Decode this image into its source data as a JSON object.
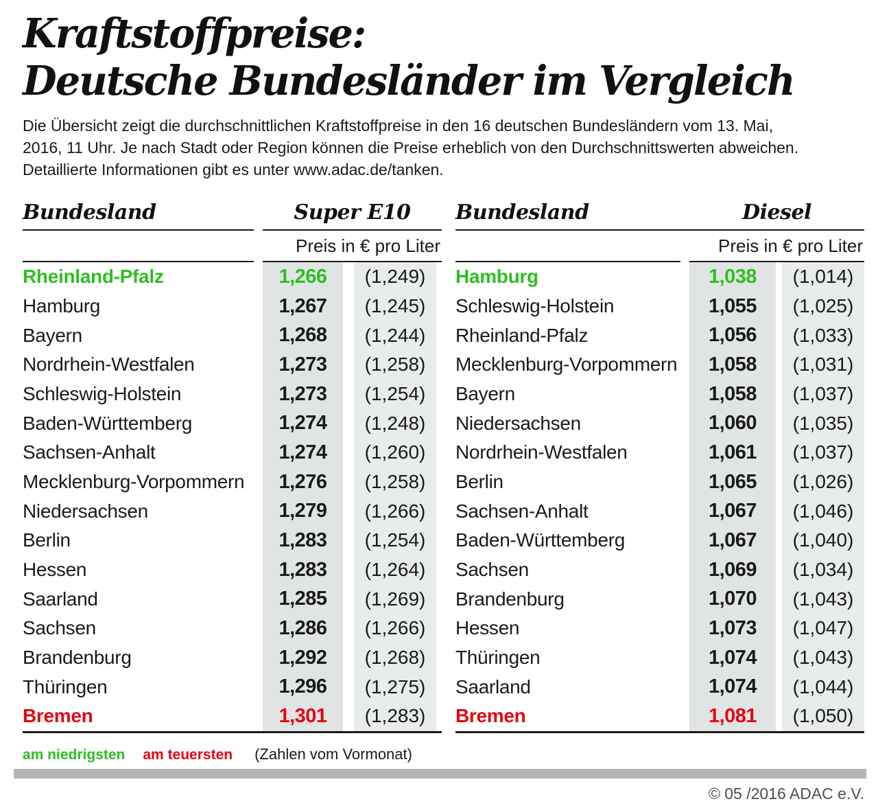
{
  "header": {
    "title_line1": "Kraftstoffpreise:",
    "title_line2": "Deutsche Bundesländer im Vergleich",
    "intro_lines": [
      "Die Übersicht zeigt die durchschnittlichen Kraftstoffpreise in den 16 deutschen Bundesländern vom 13. Mai,",
      "2016, 11 Uhr. Je nach Stadt oder Region können die Preise erheblich von den Durchschnittswerten abweichen.",
      "Detaillierte Informationen gibt es unter www.adac.de/tanken."
    ]
  },
  "chart_data": [
    {
      "type": "table",
      "title": "Super E10",
      "region_header": "Bundesland",
      "fuel_header": "Super E10",
      "unit_label": "Preis in € pro Liter",
      "value_note": "(Zahlen vom Vormonat)",
      "rows": [
        {
          "name": "Rheinland-Pfalz",
          "price": "1,266",
          "prev": "(1,249)",
          "highlight": "lowest"
        },
        {
          "name": "Hamburg",
          "price": "1,267",
          "prev": "(1,245)"
        },
        {
          "name": "Bayern",
          "price": "1,268",
          "prev": "(1,244)"
        },
        {
          "name": "Nordrhein-Westfalen",
          "price": "1,273",
          "prev": "(1,258)"
        },
        {
          "name": "Schleswig-Holstein",
          "price": "1,273",
          "prev": "(1,254)"
        },
        {
          "name": "Baden-Württemberg",
          "price": "1,274",
          "prev": "(1,248)"
        },
        {
          "name": "Sachsen-Anhalt",
          "price": "1,274",
          "prev": "(1,260)"
        },
        {
          "name": "Mecklenburg-Vorpommern",
          "price": "1,276",
          "prev": "(1,258)"
        },
        {
          "name": "Niedersachsen",
          "price": "1,279",
          "prev": "(1,266)"
        },
        {
          "name": "Berlin",
          "price": "1,283",
          "prev": "(1,254)"
        },
        {
          "name": "Hessen",
          "price": "1,283",
          "prev": "(1,264)"
        },
        {
          "name": "Saarland",
          "price": "1,285",
          "prev": "(1,269)"
        },
        {
          "name": "Sachsen",
          "price": "1,286",
          "prev": "(1,266)"
        },
        {
          "name": "Brandenburg",
          "price": "1,292",
          "prev": "(1,268)"
        },
        {
          "name": "Thüringen",
          "price": "1,296",
          "prev": "(1,275)"
        },
        {
          "name": "Bremen",
          "price": "1,301",
          "prev": "(1,283)",
          "highlight": "highest"
        }
      ]
    },
    {
      "type": "table",
      "title": "Diesel",
      "region_header": "Bundesland",
      "fuel_header": "Diesel",
      "unit_label": "Preis in € pro Liter",
      "value_note": "(Zahlen vom Vormonat)",
      "rows": [
        {
          "name": "Hamburg",
          "price": "1,038",
          "prev": "(1,014)",
          "highlight": "lowest"
        },
        {
          "name": "Schleswig-Holstein",
          "price": "1,055",
          "prev": "(1,025)"
        },
        {
          "name": "Rheinland-Pfalz",
          "price": "1,056",
          "prev": "(1,033)"
        },
        {
          "name": "Mecklenburg-Vorpommern",
          "price": "1,058",
          "prev": "(1,031)"
        },
        {
          "name": "Bayern",
          "price": "1,058",
          "prev": "(1,037)"
        },
        {
          "name": "Niedersachsen",
          "price": "1,060",
          "prev": "(1,035)"
        },
        {
          "name": "Nordrhein-Westfalen",
          "price": "1,061",
          "prev": "(1,037)"
        },
        {
          "name": "Berlin",
          "price": "1,065",
          "prev": "(1,026)"
        },
        {
          "name": "Sachsen-Anhalt",
          "price": "1,067",
          "prev": "(1,046)"
        },
        {
          "name": "Baden-Württemberg",
          "price": "1,067",
          "prev": "(1,040)"
        },
        {
          "name": "Sachsen",
          "price": "1,069",
          "prev": "(1,034)"
        },
        {
          "name": "Brandenburg",
          "price": "1,070",
          "prev": "(1,043)"
        },
        {
          "name": "Hessen",
          "price": "1,073",
          "prev": "(1,047)"
        },
        {
          "name": "Thüringen",
          "price": "1,074",
          "prev": "(1,043)"
        },
        {
          "name": "Saarland",
          "price": "1,074",
          "prev": "(1,044)"
        },
        {
          "name": "Bremen",
          "price": "1,081",
          "prev": "(1,050)",
          "highlight": "highest"
        }
      ]
    }
  ],
  "legend": {
    "lowest_label": "am niedrigsten",
    "highest_label": "am teuersten",
    "note": "(Zahlen vom Vormonat)"
  },
  "footer": {
    "copyright": "© 05 /2016 ADAC e.V."
  },
  "colors": {
    "lowest_green": "#2fbe23",
    "highest_red": "#e30613",
    "price_col_bg": "#e0e5e4",
    "prev_col_bg": "#e8eceb",
    "divider_bar": "#b2b6b5",
    "text": "#1a1a18",
    "copyright_text": "#4a4f4f"
  }
}
